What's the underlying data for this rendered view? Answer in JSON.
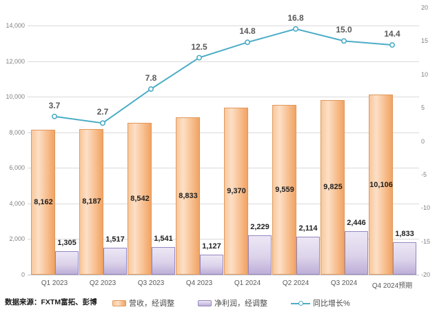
{
  "source_note": "数据来源：FXTM富拓、彭博",
  "colors": {
    "revenue_fill_light": "#FCDFC6",
    "revenue_fill_dark": "#F1A363",
    "revenue_border": "#E0985C",
    "profit_fill_light": "#ECE7F5",
    "profit_fill_dark": "#BDAED8",
    "profit_border": "#9486BF",
    "line": "#4BACC6",
    "gridline": "#D9D9D9",
    "axis_text": "#808080",
    "bar_label_text": "#1F1F1F",
    "line_label_text": "#595959"
  },
  "chart_data": {
    "type": "bar",
    "subtype": "grouped bars with secondary-axis line (combo)",
    "title": "",
    "categories": [
      "Q1 2023",
      "Q2 2023",
      "Q3 2023",
      "Q4 2023",
      "Q1 2024",
      "Q2 2024",
      "Q3 2024",
      "Q4 2024预期"
    ],
    "series": [
      {
        "name": "营收，经调整",
        "type": "bar",
        "axis": "left",
        "values": [
          8162,
          8187,
          8542,
          8833,
          9370,
          9559,
          9825,
          10106
        ],
        "labels": [
          "8,162",
          "8,187",
          "8,542",
          "8,833",
          "9,370",
          "9,559",
          "9,825",
          "10,106"
        ]
      },
      {
        "name": "净利润，经调整",
        "type": "bar",
        "axis": "left",
        "values": [
          1305,
          1517,
          1541,
          1127,
          2229,
          2114,
          2446,
          1833
        ],
        "labels": [
          "1,305",
          "1,517",
          "1,541",
          "1,127",
          "2,229",
          "2,114",
          "2,446",
          "1,833"
        ]
      },
      {
        "name": "同比增长%",
        "type": "line",
        "axis": "right",
        "values": [
          3.7,
          2.7,
          7.8,
          12.5,
          14.8,
          16.8,
          15.0,
          14.4
        ],
        "labels": [
          "3.7",
          "2.7",
          "7.8",
          "12.5",
          "14.8",
          "16.8",
          "15.0",
          "14.4"
        ]
      }
    ],
    "left_axis": {
      "min": 0,
      "max": 14000,
      "step": 2000,
      "tick_labels": [
        "0",
        "2,000",
        "4,000",
        "6,000",
        "8,000",
        "10,000",
        "12,000",
        "14,000"
      ]
    },
    "right_axis": {
      "min": -20,
      "max": 20,
      "step": 5,
      "tick_labels": [
        "-20",
        "-15",
        "-10",
        "-5",
        "0",
        "5",
        "10",
        "15",
        "20"
      ]
    },
    "grid": "horizontal",
    "legend_position": "bottom"
  }
}
